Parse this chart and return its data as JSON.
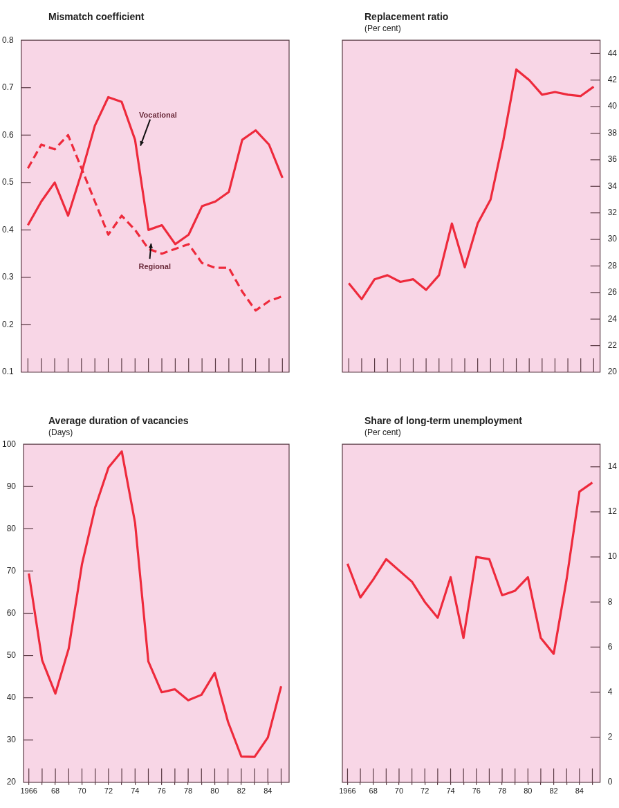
{
  "chart_data": [
    {
      "type": "line",
      "title": "Mismatch coefficient",
      "categories": [
        null,
        null,
        null,
        null,
        null,
        null,
        null,
        null,
        null,
        null,
        null,
        null,
        null,
        null,
        null,
        null,
        null,
        null,
        null,
        null
      ],
      "series": [
        {
          "color": "#ee2a3c",
          "line_style": "solid",
          "values": [
            0.41,
            0.46,
            0.5,
            0.43,
            0.52,
            0.62,
            0.68,
            0.67,
            0.59,
            0.4,
            0.41,
            0.37,
            0.39,
            0.45,
            0.46,
            0.48,
            0.59,
            0.61,
            0.58,
            0.51
          ]
        },
        {
          "color": "#ee2a3c",
          "line_style": "dashed",
          "values": [
            0.53,
            0.58,
            0.57,
            0.6,
            0.53,
            0.46,
            0.39,
            0.43,
            0.4,
            0.36,
            0.35,
            0.36,
            0.37,
            0.33,
            0.32,
            0.32,
            0.27,
            0.23,
            0.25,
            0.26
          ]
        }
      ],
      "annotations": [
        "Vocational",
        "Regional"
      ],
      "ylim": [
        0.1,
        0.8
      ],
      "yticks": [
        0.1,
        0.2,
        0.3,
        0.4,
        0.5,
        0.6,
        0.7,
        0.8
      ],
      "tick_labels": "y"
    },
    {
      "type": "line",
      "title": "Replacement ratio",
      "subtitle": "(Per cent)",
      "categories": [
        null,
        null,
        null,
        null,
        null,
        null,
        null,
        null,
        null,
        null,
        null,
        null,
        null,
        null,
        null,
        null,
        null,
        null,
        null,
        null
      ],
      "values": [
        26.7,
        25.5,
        27.0,
        27.3,
        26.8,
        27.0,
        26.2,
        27.3,
        31.2,
        27.9,
        31.2,
        33.0,
        37.5,
        42.8,
        42.0,
        40.9,
        41.1,
        40.9,
        40.8,
        41.5
      ],
      "color": "#ee2a3c",
      "ylim": [
        20,
        45
      ],
      "yticks": [
        20,
        22,
        24,
        26,
        28,
        30,
        32,
        34,
        36,
        38,
        40,
        42,
        44
      ],
      "tick_labels": "y"
    },
    {
      "type": "line",
      "title": "Average duration of vacancies",
      "subtitle": "(Days)",
      "x": [
        1966,
        1967,
        1968,
        1969,
        1970,
        1971,
        1972,
        1973,
        1974,
        1975,
        1976,
        1977,
        1978,
        1979,
        1980,
        1981,
        1982,
        1983,
        1984,
        1985
      ],
      "values": [
        69.4,
        48.9,
        41.0,
        51.6,
        71.6,
        85.1,
        94.5,
        98.3,
        81.4,
        48.6,
        41.3,
        42.0,
        39.4,
        40.7,
        45.9,
        34.3,
        26.1,
        26.0,
        30.6,
        42.7
      ],
      "color": "#ee2a3c",
      "xlim": [
        1965.6,
        1985.6
      ],
      "xticks": [
        {
          "value": 1966,
          "label": "1966"
        },
        {
          "value": 1967,
          "label": null
        },
        {
          "value": 1968,
          "label": "68"
        },
        {
          "value": 1969,
          "label": null
        },
        {
          "value": 1970,
          "label": "70"
        },
        {
          "value": 1971,
          "label": null
        },
        {
          "value": 1972,
          "label": "72"
        },
        {
          "value": 1973,
          "label": null
        },
        {
          "value": 1974,
          "label": "74"
        },
        {
          "value": 1975,
          "label": null
        },
        {
          "value": 1976,
          "label": "76"
        },
        {
          "value": 1977,
          "label": null
        },
        {
          "value": 1978,
          "label": "78"
        },
        {
          "value": 1979,
          "label": null
        },
        {
          "value": 1980,
          "label": "80"
        },
        {
          "value": 1981,
          "label": null
        },
        {
          "value": 1982,
          "label": "82"
        },
        {
          "value": 1983,
          "label": null
        },
        {
          "value": 1984,
          "label": "84"
        },
        {
          "value": 1985,
          "label": null
        }
      ],
      "ylim": [
        20,
        100
      ],
      "yticks": [
        20,
        30,
        40,
        50,
        60,
        70,
        80,
        90,
        100
      ]
    },
    {
      "type": "line",
      "title": "Share of long-term unemployment",
      "subtitle": "(Per cent)",
      "x": [
        1966,
        1967,
        1968,
        1969,
        1970,
        1971,
        1972,
        1973,
        1974,
        1975,
        1976,
        1977,
        1978,
        1979,
        1980,
        1981,
        1982,
        1983,
        1984,
        1985
      ],
      "values": [
        9.7,
        8.2,
        9.0,
        9.9,
        9.4,
        8.9,
        8.0,
        7.3,
        9.1,
        6.4,
        10.0,
        9.9,
        8.3,
        8.5,
        9.1,
        6.4,
        5.7,
        9.0,
        12.9,
        13.3
      ],
      "color": "#ee2a3c",
      "xlim": [
        1965.6,
        1985.6
      ],
      "xticks": [
        {
          "value": 1966,
          "label": "1966"
        },
        {
          "value": 1967,
          "label": null
        },
        {
          "value": 1968,
          "label": "68"
        },
        {
          "value": 1969,
          "label": null
        },
        {
          "value": 1970,
          "label": "70"
        },
        {
          "value": 1971,
          "label": null
        },
        {
          "value": 1972,
          "label": "72"
        },
        {
          "value": 1973,
          "label": null
        },
        {
          "value": 1974,
          "label": "74"
        },
        {
          "value": 1975,
          "label": null
        },
        {
          "value": 1976,
          "label": "76"
        },
        {
          "value": 1977,
          "label": null
        },
        {
          "value": 1978,
          "label": "78"
        },
        {
          "value": 1979,
          "label": null
        },
        {
          "value": 1980,
          "label": "80"
        },
        {
          "value": 1981,
          "label": null
        },
        {
          "value": 1982,
          "label": "82"
        },
        {
          "value": 1983,
          "label": null
        },
        {
          "value": 1984,
          "label": "84"
        },
        {
          "value": 1985,
          "label": null
        }
      ],
      "ylim": [
        0,
        15
      ],
      "yticks": [
        0,
        2,
        4,
        6,
        8,
        10,
        12,
        14
      ]
    }
  ]
}
